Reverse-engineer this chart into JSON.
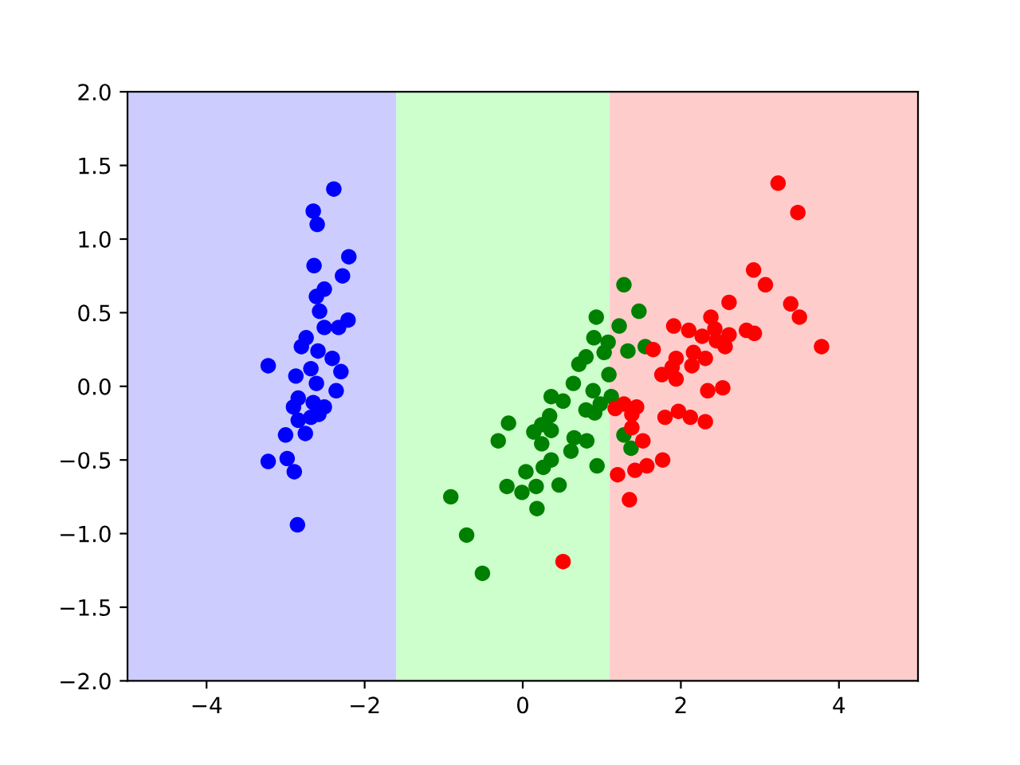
{
  "chart_data": {
    "type": "scatter",
    "xlim": [
      -5,
      5
    ],
    "ylim": [
      -2,
      2
    ],
    "xticks": [
      {
        "value": -4,
        "label": "−4"
      },
      {
        "value": -2,
        "label": "−2"
      },
      0,
      2,
      4
    ],
    "yticks": [
      {
        "value": -2,
        "label": "−2.0"
      },
      {
        "value": -1.5,
        "label": "−1.5"
      },
      {
        "value": -1,
        "label": "−1.0"
      },
      {
        "value": -0.5,
        "label": "−0.5"
      },
      {
        "value": 0,
        "label": "0.0"
      },
      0.5,
      {
        "value": 1,
        "label": "1.0"
      },
      1.5,
      {
        "value": 2,
        "label": "2.0"
      }
    ],
    "marker": "circle",
    "bands": [
      {
        "axis": "x",
        "from": -5,
        "to": -1.6,
        "color": "#ccccff"
      },
      {
        "axis": "x",
        "from": -1.6,
        "to": 1.1,
        "color": "#ccffcc"
      },
      {
        "axis": "x",
        "from": 1.1,
        "to": 5,
        "color": "#ffcccc"
      }
    ],
    "series": [
      {
        "color": "#0000ff",
        "x": [
          -2.39,
          -2.65,
          -2.6,
          -2.2,
          -2.64,
          -2.28,
          -2.51,
          -2.61,
          -2.57,
          -2.21,
          -2.33,
          -2.51,
          -2.74,
          -2.8,
          -2.59,
          -3.22,
          -2.41,
          -2.68,
          -2.87,
          -2.3,
          -2.61,
          -2.36,
          -2.84,
          -2.65,
          -2.9,
          -2.51,
          -2.58,
          -2.84,
          -2.68,
          -3.0,
          -2.75,
          -3.22,
          -2.98,
          -2.89,
          -2.85
        ],
        "values": [
          1.34,
          1.19,
          1.1,
          0.88,
          0.82,
          0.75,
          0.66,
          0.61,
          0.51,
          0.45,
          0.4,
          0.4,
          0.33,
          0.27,
          0.24,
          0.14,
          0.19,
          0.12,
          0.07,
          0.1,
          0.02,
          -0.03,
          -0.08,
          -0.11,
          -0.14,
          -0.14,
          -0.19,
          -0.23,
          -0.21,
          -0.33,
          -0.32,
          -0.51,
          -0.49,
          -0.58,
          -0.94
        ]
      },
      {
        "color": "#008000",
        "x": [
          1.28,
          1.47,
          0.93,
          1.22,
          0.9,
          1.08,
          1.03,
          1.33,
          1.55,
          0.8,
          0.71,
          1.09,
          0.64,
          0.89,
          0.36,
          0.51,
          1.12,
          0.98,
          0.8,
          0.91,
          0.34,
          -0.18,
          0.24,
          0.14,
          0.36,
          1.28,
          -0.31,
          0.24,
          0.65,
          0.81,
          1.37,
          0.61,
          0.36,
          0.26,
          0.94,
          0.04,
          -0.2,
          -0.01,
          0.17,
          0.46,
          -0.91,
          0.18,
          -0.71,
          -0.51
        ],
        "values": [
          0.69,
          0.51,
          0.47,
          0.41,
          0.33,
          0.3,
          0.23,
          0.24,
          0.27,
          0.2,
          0.15,
          0.08,
          0.02,
          -0.03,
          -0.07,
          -0.1,
          -0.07,
          -0.12,
          -0.16,
          -0.18,
          -0.2,
          -0.25,
          -0.26,
          -0.31,
          -0.3,
          -0.33,
          -0.37,
          -0.39,
          -0.35,
          -0.37,
          -0.42,
          -0.44,
          -0.5,
          -0.55,
          -0.54,
          -0.58,
          -0.68,
          -0.72,
          -0.68,
          -0.67,
          -0.75,
          -0.83,
          -1.01,
          -1.27
        ]
      },
      {
        "color": "#ff0000",
        "x": [
          3.23,
          3.48,
          2.92,
          3.07,
          2.61,
          3.39,
          3.5,
          2.38,
          3.78,
          1.91,
          2.1,
          2.27,
          2.43,
          2.61,
          2.83,
          2.93,
          2.45,
          2.56,
          1.65,
          1.94,
          2.16,
          2.31,
          2.14,
          1.89,
          1.76,
          1.94,
          2.53,
          2.34,
          1.17,
          1.28,
          1.44,
          1.38,
          1.97,
          2.12,
          2.31,
          1.8,
          1.38,
          1.52,
          1.77,
          1.57,
          1.42,
          1.2,
          1.35,
          0.51
        ],
        "values": [
          1.38,
          1.18,
          0.79,
          0.69,
          0.57,
          0.56,
          0.47,
          0.47,
          0.27,
          0.41,
          0.38,
          0.34,
          0.39,
          0.35,
          0.38,
          0.36,
          0.31,
          0.27,
          0.25,
          0.19,
          0.23,
          0.19,
          0.14,
          0.13,
          0.08,
          0.05,
          -0.01,
          -0.03,
          -0.15,
          -0.12,
          -0.14,
          -0.19,
          -0.17,
          -0.21,
          -0.24,
          -0.21,
          -0.28,
          -0.37,
          -0.5,
          -0.54,
          -0.57,
          -0.6,
          -0.77,
          -1.19
        ]
      }
    ]
  }
}
